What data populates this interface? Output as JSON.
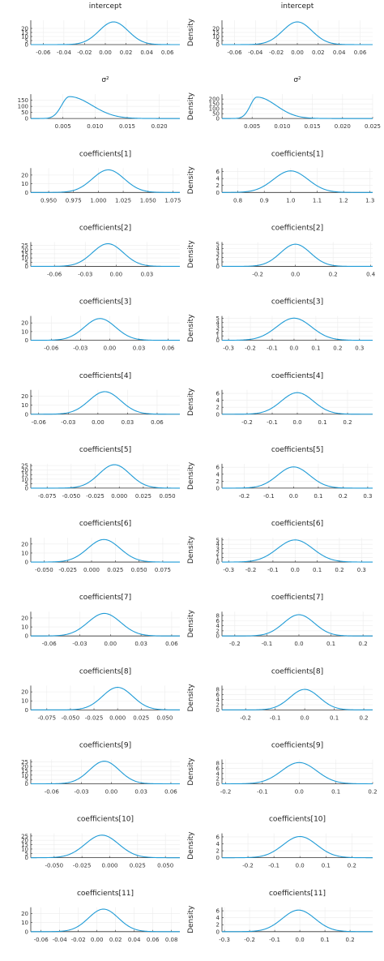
{
  "figure": {
    "colors": {
      "line": "#1f9bd6",
      "grid": "#ececec",
      "axis": "#333333"
    }
  },
  "chart_data": [
    {
      "type": "line",
      "title": "intercept",
      "ylabel": "",
      "xlim": [
        -0.072,
        0.072
      ],
      "ylim": [
        0,
        30
      ],
      "xticks": [
        -0.06,
        -0.04,
        -0.02,
        0.0,
        0.02,
        0.04,
        0.06
      ],
      "xtick_labels": [
        "-0.06",
        "-0.04",
        "-0.02",
        "0.00",
        "0.02",
        "0.04",
        "0.06"
      ],
      "yticks": [
        0,
        5,
        10,
        15,
        20
      ],
      "ytick_labels": [
        "0",
        "5",
        "10",
        "15",
        "20"
      ],
      "mean": 0.008,
      "sd": 0.014,
      "peak": 28,
      "grid": true
    },
    {
      "type": "line",
      "title": "intercept",
      "ylabel": "Density",
      "xlim": [
        -0.072,
        0.072
      ],
      "ylim": [
        0,
        30
      ],
      "xticks": [
        -0.06,
        -0.04,
        -0.02,
        0.0,
        0.02,
        0.04,
        0.06
      ],
      "xtick_labels": [
        "-0.06",
        "-0.04",
        "-0.02",
        "0.00",
        "0.02",
        "0.04",
        "0.06"
      ],
      "yticks": [
        0,
        5,
        10,
        15,
        20
      ],
      "ytick_labels": [
        "0",
        "5",
        "10",
        "15",
        "20"
      ],
      "mean": 0.0,
      "sd": 0.014,
      "peak": 28,
      "grid": true
    },
    {
      "type": "line",
      "title": "σ²",
      "ylabel": "",
      "xlim": [
        0,
        0.0232
      ],
      "ylim": [
        0,
        200
      ],
      "xticks": [
        0.005,
        0.01,
        0.015,
        0.02
      ],
      "xtick_labels": [
        "0.005",
        "0.010",
        "0.015",
        "0.020"
      ],
      "yticks": [
        0,
        50,
        100,
        150
      ],
      "ytick_labels": [
        "0",
        "50",
        "100",
        "150"
      ],
      "mean": 0.006,
      "sd": 0.0012,
      "sd_right": 0.0035,
      "peak": 180,
      "grid": true
    },
    {
      "type": "line",
      "title": "σ²",
      "ylabel": "Density",
      "xlim": [
        0,
        0.025
      ],
      "ylim": [
        0,
        250
      ],
      "xticks": [
        0.005,
        0.01,
        0.015,
        0.02,
        0.025
      ],
      "xtick_labels": [
        "0.005",
        "0.010",
        "0.015",
        "0.020",
        "0.025"
      ],
      "yticks": [
        0,
        50,
        100,
        150,
        200
      ],
      "ytick_labels": [
        "0",
        "50",
        "100",
        "150",
        "200"
      ],
      "mean": 0.0058,
      "sd": 0.0011,
      "sd_right": 0.0032,
      "peak": 220,
      "grid": true
    },
    {
      "type": "line",
      "title": "coefficients[1]",
      "ylabel": "",
      "xlim": [
        0.932,
        1.082
      ],
      "ylim": [
        0,
        28
      ],
      "xticks": [
        0.95,
        0.975,
        1.0,
        1.025,
        1.05,
        1.075
      ],
      "xtick_labels": [
        "0.950",
        "0.975",
        "1.000",
        "1.025",
        "1.050",
        "1.075"
      ],
      "yticks": [
        0,
        10,
        20
      ],
      "ytick_labels": [
        "0",
        "10",
        "20"
      ],
      "mean": 1.01,
      "sd": 0.016,
      "peak": 26,
      "grid": true
    },
    {
      "type": "line",
      "title": "coefficients[1]",
      "ylabel": "Density",
      "xlim": [
        0.74,
        1.31
      ],
      "ylim": [
        0,
        7
      ],
      "xticks": [
        0.8,
        0.9,
        1.0,
        1.1,
        1.2,
        1.3
      ],
      "xtick_labels": [
        "0.8",
        "0.9",
        "1.0",
        "1.1",
        "1.2",
        "1.3"
      ],
      "yticks": [
        0,
        2,
        4,
        6
      ],
      "ytick_labels": [
        "0",
        "2",
        "4",
        "6"
      ],
      "mean": 1.0,
      "sd": 0.065,
      "peak": 6.2,
      "grid": true
    },
    {
      "type": "line",
      "title": "coefficients[2]",
      "ylabel": "",
      "xlim": [
        -0.083,
        0.062
      ],
      "ylim": [
        0,
        29
      ],
      "xticks": [
        -0.06,
        -0.03,
        0.0,
        0.03
      ],
      "xtick_labels": [
        "-0.06",
        "-0.03",
        "0.00",
        "0.03"
      ],
      "yticks": [
        0,
        5,
        10,
        15,
        20,
        25
      ],
      "ytick_labels": [
        "0",
        "5",
        "10",
        "15",
        "20",
        "25"
      ],
      "mean": -0.008,
      "sd": 0.015,
      "peak": 27,
      "grid": true
    },
    {
      "type": "line",
      "title": "coefficients[2]",
      "ylabel": "Density",
      "xlim": [
        -0.39,
        0.41
      ],
      "ylim": [
        0,
        5.5
      ],
      "xticks": [
        -0.2,
        0.0,
        0.2,
        0.4
      ],
      "xtick_labels": [
        "-0.2",
        "0.0",
        "0.2",
        "0.4"
      ],
      "yticks": [
        0,
        1,
        2,
        3,
        4,
        5
      ],
      "ytick_labels": [
        "0",
        "1",
        "2",
        "3",
        "4",
        "5"
      ],
      "mean": 0.0,
      "sd": 0.08,
      "peak": 5.0,
      "grid": true
    },
    {
      "type": "line",
      "title": "coefficients[3]",
      "ylabel": "",
      "xlim": [
        -0.081,
        0.072
      ],
      "ylim": [
        0,
        28
      ],
      "xticks": [
        -0.06,
        -0.03,
        0.0,
        0.03,
        0.06
      ],
      "xtick_labels": [
        "-0.06",
        "-0.03",
        "0.00",
        "0.03",
        "0.06"
      ],
      "yticks": [
        0,
        10,
        20
      ],
      "ytick_labels": [
        "0",
        "10",
        "20"
      ],
      "mean": -0.01,
      "sd": 0.016,
      "peak": 25,
      "grid": true
    },
    {
      "type": "line",
      "title": "coefficients[3]",
      "ylabel": "Density",
      "xlim": [
        -0.33,
        0.36
      ],
      "ylim": [
        0,
        5.5
      ],
      "xticks": [
        -0.3,
        -0.2,
        -0.1,
        0.0,
        0.1,
        0.2,
        0.3
      ],
      "xtick_labels": [
        "-0.3",
        "-0.2",
        "-0.1",
        "0.0",
        "0.1",
        "0.2",
        "0.3"
      ],
      "yticks": [
        0,
        1,
        2,
        3,
        4,
        5
      ],
      "ytick_labels": [
        "0",
        "1",
        "2",
        "3",
        "4",
        "5"
      ],
      "mean": 0.0,
      "sd": 0.08,
      "peak": 5.0,
      "grid": true
    },
    {
      "type": "line",
      "title": "coefficients[4]",
      "ylabel": "",
      "xlim": [
        -0.068,
        0.083
      ],
      "ylim": [
        0,
        27
      ],
      "xticks": [
        -0.06,
        -0.03,
        0.0,
        0.03,
        0.06
      ],
      "xtick_labels": [
        "-0.06",
        "-0.03",
        "0.00",
        "0.03",
        "0.06"
      ],
      "yticks": [
        0,
        10,
        20
      ],
      "ytick_labels": [
        "0",
        "10",
        "20"
      ],
      "mean": 0.007,
      "sd": 0.016,
      "peak": 25,
      "grid": true
    },
    {
      "type": "line",
      "title": "coefficients[4]",
      "ylabel": "Density",
      "xlim": [
        -0.3,
        0.3
      ],
      "ylim": [
        0,
        7
      ],
      "xticks": [
        -0.2,
        -0.1,
        0.0,
        0.1,
        0.2
      ],
      "xtick_labels": [
        "-0.2",
        "-0.1",
        "0.0",
        "0.1",
        "0.2"
      ],
      "yticks": [
        0,
        2,
        4,
        6
      ],
      "ytick_labels": [
        "0",
        "2",
        "4",
        "6"
      ],
      "mean": 0.0,
      "sd": 0.064,
      "peak": 6.2,
      "grid": true
    },
    {
      "type": "line",
      "title": "coefficients[5]",
      "ylabel": "",
      "xlim": [
        -0.092,
        0.063
      ],
      "ylim": [
        0,
        27
      ],
      "xticks": [
        -0.075,
        -0.05,
        -0.025,
        0.0,
        0.025,
        0.05
      ],
      "xtick_labels": [
        "-0.075",
        "-0.050",
        "-0.025",
        "0.000",
        "0.025",
        "0.050"
      ],
      "yticks": [
        0,
        5,
        10,
        15,
        20,
        25
      ],
      "ytick_labels": [
        "0",
        "5",
        "10",
        "15",
        "20",
        "25"
      ],
      "mean": -0.005,
      "sd": 0.016,
      "peak": 26,
      "grid": true
    },
    {
      "type": "line",
      "title": "coefficients[5]",
      "ylabel": "Density",
      "xlim": [
        -0.29,
        0.32
      ],
      "ylim": [
        0,
        7
      ],
      "xticks": [
        -0.2,
        -0.1,
        0.0,
        0.1,
        0.2,
        0.3
      ],
      "xtick_labels": [
        "-0.2",
        "-0.1",
        "0.0",
        "0.1",
        "0.2",
        "0.3"
      ],
      "yticks": [
        0,
        2,
        4,
        6
      ],
      "ytick_labels": [
        "0",
        "2",
        "4",
        "6"
      ],
      "mean": 0.0,
      "sd": 0.065,
      "peak": 6.1,
      "grid": true
    },
    {
      "type": "line",
      "title": "coefficients[6]",
      "ylabel": "",
      "xlim": [
        -0.064,
        0.093
      ],
      "ylim": [
        0,
        27
      ],
      "xticks": [
        -0.05,
        -0.025,
        0.0,
        0.025,
        0.05,
        0.075
      ],
      "xtick_labels": [
        "-0.050",
        "-0.025",
        "0.000",
        "0.025",
        "0.050",
        "0.075"
      ],
      "yticks": [
        0,
        10,
        20
      ],
      "ytick_labels": [
        "0",
        "10",
        "20"
      ],
      "mean": 0.013,
      "sd": 0.017,
      "peak": 25,
      "grid": true
    },
    {
      "type": "line",
      "title": "coefficients[6]",
      "ylabel": "Density",
      "xlim": [
        -0.33,
        0.35
      ],
      "ylim": [
        0,
        5.5
      ],
      "xticks": [
        -0.3,
        -0.2,
        -0.1,
        0.0,
        0.1,
        0.2,
        0.3
      ],
      "xtick_labels": [
        "-0.3",
        "-0.2",
        "-0.1",
        "0.0",
        "0.1",
        "0.2",
        "0.3"
      ],
      "yticks": [
        0,
        1,
        2,
        3,
        4,
        5
      ],
      "ytick_labels": [
        "0",
        "1",
        "2",
        "3",
        "4",
        "5"
      ],
      "mean": 0.0,
      "sd": 0.08,
      "peak": 5.0,
      "grid": true
    },
    {
      "type": "line",
      "title": "coefficients[7]",
      "ylabel": "",
      "xlim": [
        -0.078,
        0.068
      ],
      "ylim": [
        0,
        27
      ],
      "xticks": [
        -0.06,
        -0.03,
        0.0,
        0.03,
        0.06
      ],
      "xtick_labels": [
        "-0.06",
        "-0.03",
        "0.00",
        "0.03",
        "0.06"
      ],
      "yticks": [
        0,
        10,
        20
      ],
      "ytick_labels": [
        "0",
        "10",
        "20"
      ],
      "mean": -0.006,
      "sd": 0.016,
      "peak": 25,
      "grid": true
    },
    {
      "type": "line",
      "title": "coefficients[7]",
      "ylabel": "Density",
      "xlim": [
        -0.24,
        0.23
      ],
      "ylim": [
        0,
        9.5
      ],
      "xticks": [
        -0.2,
        -0.1,
        0.0,
        0.1,
        0.2
      ],
      "xtick_labels": [
        "-0.2",
        "-0.1",
        "0.0",
        "0.1",
        "0.2"
      ],
      "yticks": [
        0,
        2,
        4,
        6,
        8
      ],
      "ytick_labels": [
        "0",
        "2",
        "4",
        "6",
        "8"
      ],
      "mean": 0.0,
      "sd": 0.048,
      "peak": 8.3,
      "grid": true
    },
    {
      "type": "line",
      "title": "coefficients[8]",
      "ylabel": "",
      "xlim": [
        -0.092,
        0.066
      ],
      "ylim": [
        0,
        27
      ],
      "xticks": [
        -0.075,
        -0.05,
        -0.025,
        0.0,
        0.025,
        0.05
      ],
      "xtick_labels": [
        "-0.075",
        "-0.050",
        "-0.025",
        "0.000",
        "0.025",
        "0.050"
      ],
      "yticks": [
        0,
        10,
        20
      ],
      "ytick_labels": [
        "0",
        "10",
        "20"
      ],
      "mean": 0.0,
      "sd": 0.016,
      "peak": 25,
      "grid": true
    },
    {
      "type": "line",
      "title": "coefficients[8]",
      "ylabel": "Density",
      "xlim": [
        -0.28,
        0.23
      ],
      "ylim": [
        0,
        9.5
      ],
      "xticks": [
        -0.2,
        -0.1,
        0.0,
        0.1,
        0.2
      ],
      "xtick_labels": [
        "-0.2",
        "-0.1",
        "0.0",
        "0.1",
        "0.2"
      ],
      "yticks": [
        0,
        2,
        4,
        6,
        8
      ],
      "ytick_labels": [
        "0",
        "2",
        "4",
        "6",
        "8"
      ],
      "mean": 0.0,
      "sd": 0.05,
      "peak": 8.0,
      "grid": true
    },
    {
      "type": "line",
      "title": "coefficients[9]",
      "ylabel": "",
      "xlim": [
        -0.081,
        0.069
      ],
      "ylim": [
        0,
        28
      ],
      "xticks": [
        -0.06,
        -0.03,
        0.0,
        0.03,
        0.06
      ],
      "xtick_labels": [
        "-0.06",
        "-0.03",
        "0.00",
        "0.03",
        "0.06"
      ],
      "yticks": [
        0,
        5,
        10,
        15,
        20,
        25
      ],
      "ytick_labels": [
        "0",
        "5",
        "10",
        "15",
        "20",
        "25"
      ],
      "mean": -0.007,
      "sd": 0.015,
      "peak": 26,
      "grid": true
    },
    {
      "type": "line",
      "title": "coefficients[9]",
      "ylabel": "Density",
      "xlim": [
        -0.21,
        0.2
      ],
      "ylim": [
        0,
        9.5
      ],
      "xticks": [
        -0.2,
        -0.1,
        0.0,
        0.1,
        0.2
      ],
      "xtick_labels": [
        "-0.2",
        "-0.1",
        "0.0",
        "0.1",
        "0.2"
      ],
      "yticks": [
        0,
        2,
        4,
        6,
        8
      ],
      "ytick_labels": [
        "0",
        "2",
        "4",
        "6",
        "8"
      ],
      "mean": 0.0,
      "sd": 0.048,
      "peak": 8.3,
      "grid": true
    },
    {
      "type": "line",
      "title": "coefficients[10]",
      "ylabel": "",
      "xlim": [
        -0.071,
        0.063
      ],
      "ylim": [
        0,
        28
      ],
      "xticks": [
        -0.05,
        -0.025,
        0.0,
        0.025,
        0.05
      ],
      "xtick_labels": [
        "-0.050",
        "-0.025",
        "0.000",
        "0.025",
        "0.050"
      ],
      "yticks": [
        0,
        5,
        10,
        15,
        20,
        25
      ],
      "ytick_labels": [
        "0",
        "5",
        "10",
        "15",
        "20",
        "25"
      ],
      "mean": -0.007,
      "sd": 0.015,
      "peak": 26,
      "grid": true
    },
    {
      "type": "line",
      "title": "coefficients[10]",
      "ylabel": "Density",
      "xlim": [
        -0.3,
        0.28
      ],
      "ylim": [
        0,
        7
      ],
      "xticks": [
        -0.2,
        -0.1,
        0.0,
        0.1,
        0.2
      ],
      "xtick_labels": [
        "-0.2",
        "-0.1",
        "0.0",
        "0.1",
        "0.2"
      ],
      "yticks": [
        0,
        2,
        4,
        6
      ],
      "ytick_labels": [
        "0",
        "2",
        "4",
        "6"
      ],
      "mean": 0.0,
      "sd": 0.065,
      "peak": 6.1,
      "grid": true
    },
    {
      "type": "line",
      "title": "coefficients[11]",
      "ylabel": "",
      "xlim": [
        -0.071,
        0.089
      ],
      "ylim": [
        0,
        27
      ],
      "xticks": [
        -0.06,
        -0.04,
        -0.02,
        0.0,
        0.02,
        0.04,
        0.06,
        0.08
      ],
      "xtick_labels": [
        "-0.06",
        "-0.04",
        "-0.02",
        "0.00",
        "0.02",
        "0.04",
        "0.06",
        "0.08"
      ],
      "yticks": [
        0,
        10,
        20
      ],
      "ytick_labels": [
        "0",
        "10",
        "20"
      ],
      "mean": 0.007,
      "sd": 0.016,
      "peak": 25,
      "grid": true
    },
    {
      "type": "line",
      "title": "coefficients[11]",
      "ylabel": "Density",
      "xlim": [
        -0.31,
        0.29
      ],
      "ylim": [
        0,
        7
      ],
      "xticks": [
        -0.3,
        -0.2,
        -0.1,
        0.0,
        0.1,
        0.2
      ],
      "xtick_labels": [
        "-0.3",
        "-0.2",
        "-0.1",
        "0.0",
        "0.1",
        "0.2"
      ],
      "yticks": [
        0,
        2,
        4,
        6
      ],
      "ytick_labels": [
        "0",
        "2",
        "4",
        "6"
      ],
      "mean": -0.005,
      "sd": 0.065,
      "peak": 6.2,
      "grid": true
    }
  ]
}
